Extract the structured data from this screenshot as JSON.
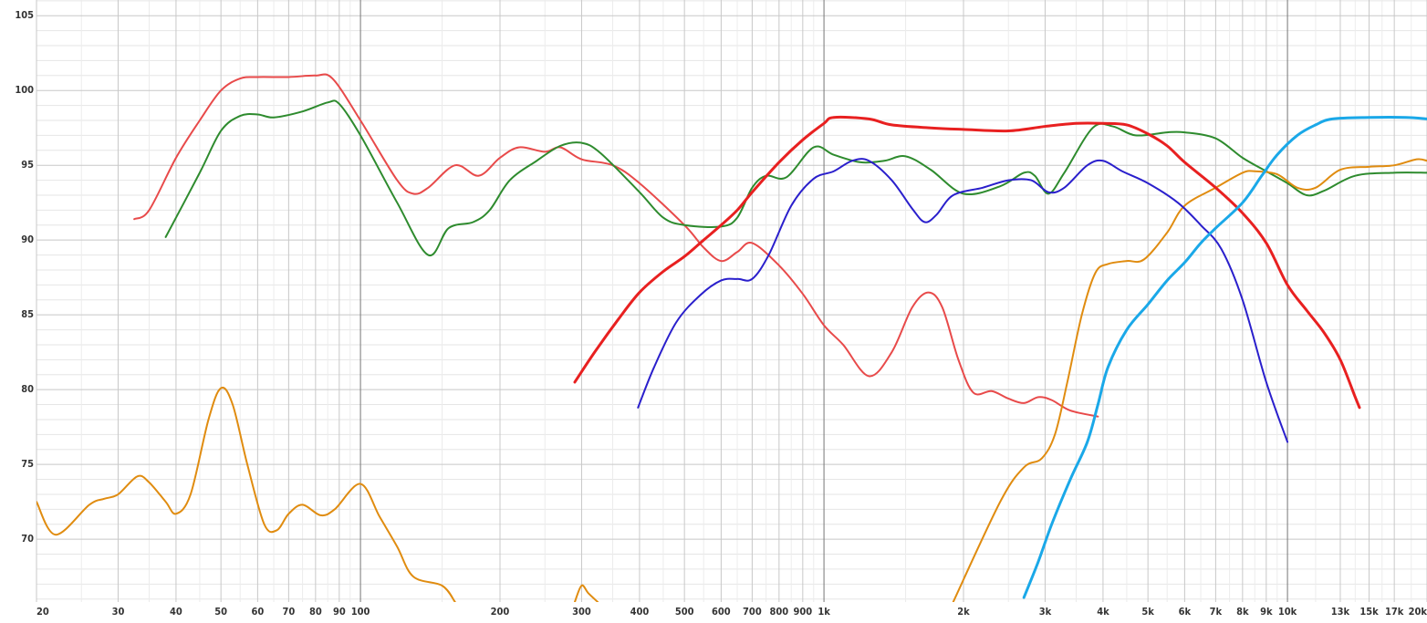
{
  "chart_data": {
    "type": "line",
    "xscale": "log",
    "grid": true,
    "xlim": [
      20,
      20000
    ],
    "ylim": [
      65.8,
      106.05
    ],
    "xticks": [
      20,
      30,
      40,
      50,
      60,
      70,
      80,
      90,
      100,
      200,
      300,
      400,
      500,
      600,
      700,
      800,
      900,
      {
        "value": 1000,
        "label": "1k"
      },
      {
        "value": 2000,
        "label": "2k"
      },
      {
        "value": 3000,
        "label": "3k"
      },
      {
        "value": 4000,
        "label": "4k"
      },
      {
        "value": 5000,
        "label": "5k"
      },
      {
        "value": 6000,
        "label": "6k"
      },
      {
        "value": 7000,
        "label": "7k"
      },
      {
        "value": 8000,
        "label": "8k"
      },
      {
        "value": 9000,
        "label": "9k"
      },
      {
        "value": 10000,
        "label": "10k"
      },
      {
        "value": 13000,
        "label": "13k"
      },
      {
        "value": 15000,
        "label": "15k"
      },
      {
        "value": 17000,
        "label": "17k"
      },
      {
        "value": 20000,
        "label": "20k"
      }
    ],
    "yticks": [
      70,
      75,
      80,
      85,
      90,
      95,
      100,
      105
    ],
    "series": [
      {
        "color": "#e84a4a",
        "width": 2,
        "x": [
          32.5,
          35,
          40,
          45,
          50,
          55,
          60,
          70,
          80,
          87,
          100,
          120,
          130,
          140,
          160,
          180,
          200,
          220,
          250,
          270,
          300,
          350,
          400,
          500,
          550,
          600,
          650,
          700,
          800,
          900,
          1000,
          1100,
          1250,
          1400,
          1550,
          1680,
          1800,
          1950,
          2100,
          2300,
          2500,
          2700,
          2900,
          3100,
          3400,
          3900
        ],
        "values": [
          91.4,
          92,
          95.5,
          98,
          100,
          100.8,
          100.9,
          100.9,
          101,
          100.8,
          98,
          94,
          93.1,
          93.5,
          95,
          94.3,
          95.5,
          96.2,
          95.9,
          96.2,
          95.4,
          95,
          93.8,
          91,
          89.5,
          88.6,
          89.2,
          89.8,
          88.3,
          86.4,
          84.3,
          83,
          80.9,
          82.5,
          85.5,
          86.5,
          85.5,
          82,
          79.8,
          79.9,
          79.4,
          79.1,
          79.5,
          79.3,
          78.6,
          78.2
        ]
      },
      {
        "color": "#2e8b2e",
        "width": 2,
        "x": [
          38,
          45,
          50,
          55,
          60,
          65,
          75,
          85,
          90,
          100,
          120,
          140,
          155,
          175,
          190,
          210,
          240,
          270,
          300,
          330,
          400,
          450,
          500,
          600,
          650,
          700,
          750,
          830,
          950,
          1050,
          1200,
          1350,
          1500,
          1700,
          2000,
          2400,
          2700,
          2850,
          3050,
          3300,
          3800,
          4200,
          4700,
          5500,
          6000,
          7000,
          8000,
          9000,
          10000,
          11000,
          12000,
          14000,
          17000,
          20000
        ],
        "values": [
          90.2,
          94.5,
          97.3,
          98.3,
          98.4,
          98.2,
          98.6,
          99.2,
          99.1,
          97,
          92.5,
          89,
          90.8,
          91.2,
          92,
          94,
          95.3,
          96.3,
          96.5,
          95.8,
          93.2,
          91.5,
          91,
          90.9,
          91.5,
          93.5,
          94.3,
          94.2,
          96.2,
          95.7,
          95.2,
          95.3,
          95.6,
          94.7,
          93.1,
          93.6,
          94.5,
          94.3,
          93.1,
          94.5,
          97.5,
          97.6,
          97,
          97.2,
          97.2,
          96.8,
          95.5,
          94.6,
          93.8,
          93,
          93.3,
          94.3,
          94.5,
          94.5
        ]
      },
      {
        "color": "#e08c10",
        "width": 2,
        "x": [
          20,
          22,
          26,
          28,
          30,
          33,
          35,
          38,
          40,
          43,
          47,
          50,
          53,
          57,
          62,
          66,
          70,
          75,
          82,
          88,
          100,
          110,
          120,
          130,
          150,
          160,
          200,
          290,
          300,
          310,
          325,
          1000,
          1900,
          2400,
          2700,
          2950,
          3150,
          3350,
          3600,
          3850,
          4100,
          4500,
          4900,
          5500,
          6000,
          7000,
          8000,
          8500,
          9500,
          10500,
          11500,
          13000,
          15000,
          17000,
          19000,
          20000
        ],
        "values": [
          72.5,
          70.3,
          72.3,
          72.7,
          73,
          74.2,
          73.8,
          72.5,
          71.7,
          73,
          78,
          80.1,
          79,
          75,
          71,
          70.6,
          71.7,
          72.3,
          71.6,
          72,
          73.7,
          71.5,
          69.5,
          67.5,
          66.9,
          65.8,
          null,
          65.8,
          66.9,
          66.4,
          65.8,
          null,
          65.8,
          72.5,
          74.8,
          75.4,
          77,
          80.5,
          85,
          87.8,
          88.4,
          88.6,
          88.7,
          90.5,
          92.3,
          93.5,
          94.5,
          94.6,
          94.4,
          93.5,
          93.5,
          94.7,
          94.9,
          95,
          95.4,
          95.3
        ]
      },
      {
        "color": "#e82020",
        "width": 3,
        "x": [
          290,
          320,
          360,
          400,
          450,
          500,
          550,
          600,
          650,
          700,
          800,
          900,
          1000,
          1050,
          1250,
          1400,
          1700,
          2000,
          2500,
          3000,
          3500,
          4000,
          4500,
          5000,
          5500,
          6000,
          7000,
          8000,
          9000,
          10000,
          11000,
          12000,
          13000,
          14000,
          14300
        ],
        "values": [
          80.5,
          82.5,
          84.7,
          86.5,
          87.9,
          88.9,
          90,
          91,
          92,
          93.2,
          95.2,
          96.7,
          97.8,
          98.2,
          98.1,
          97.7,
          97.5,
          97.4,
          97.3,
          97.6,
          97.8,
          97.8,
          97.7,
          97.1,
          96.3,
          95.2,
          93.5,
          91.8,
          89.8,
          87,
          85.3,
          83.8,
          82,
          79.5,
          78.8
        ]
      },
      {
        "color": "#2a1fcc",
        "width": 2,
        "x": [
          397,
          430,
          480,
          540,
          600,
          650,
          700,
          760,
          850,
          950,
          1050,
          1150,
          1250,
          1400,
          1550,
          1650,
          1750,
          1900,
          2200,
          2500,
          2800,
          3050,
          3300,
          3700,
          4000,
          4400,
          5000,
          5800,
          6500,
          7200,
          8000,
          9000,
          10000
        ],
        "values": [
          78.8,
          81.5,
          84.5,
          86.3,
          87.3,
          87.4,
          87.4,
          89,
          92.3,
          94.1,
          94.6,
          95.3,
          95.3,
          94,
          92.1,
          91.2,
          91.7,
          93,
          93.5,
          94,
          94,
          93.2,
          93.5,
          95,
          95.3,
          94.6,
          93.8,
          92.5,
          91,
          89.4,
          86,
          80.5,
          76.5
        ]
      },
      {
        "color": "#1aa8e8",
        "width": 3,
        "x": [
          2700,
          2900,
          3100,
          3400,
          3700,
          3900,
          4100,
          4500,
          5000,
          5500,
          6000,
          6500,
          7000,
          8000,
          8800,
          9500,
          10500,
          11500,
          12500,
          15000,
          18000,
          20000
        ],
        "values": [
          66.1,
          68.5,
          71,
          74,
          76.5,
          79,
          81.5,
          84,
          85.7,
          87.3,
          88.5,
          89.8,
          90.8,
          92.5,
          94.3,
          95.7,
          97,
          97.7,
          98.1,
          98.2,
          98.2,
          98.1
        ]
      }
    ]
  }
}
